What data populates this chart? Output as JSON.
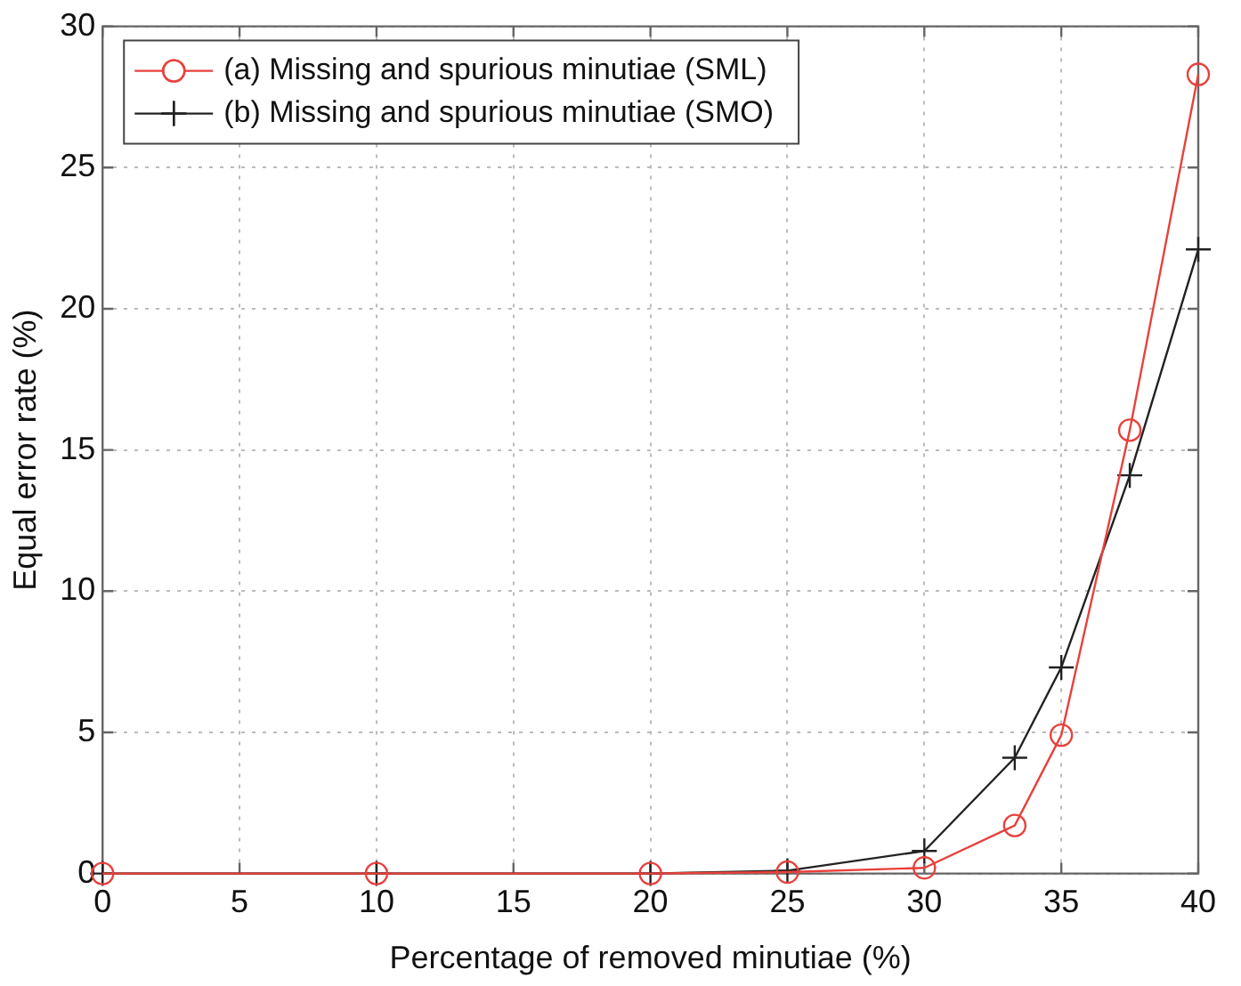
{
  "chart_data": {
    "type": "line",
    "xlabel": "Percentage of removed minutiae (%)",
    "ylabel": "Equal error rate (%)",
    "x": [
      0,
      10,
      20,
      25,
      30,
      33.3,
      35,
      37.5,
      40
    ],
    "series": [
      {
        "name": "(a) Missing and spurious minutiae (SML)",
        "color": "#e8413c",
        "marker": "circle",
        "values": [
          0,
          0,
          0,
          0.05,
          0.2,
          1.7,
          4.9,
          15.7,
          28.3
        ]
      },
      {
        "name": "(b) Missing and spurious minutiae (SMO)",
        "color": "#222222",
        "marker": "cross",
        "values": [
          0,
          0,
          0,
          0.1,
          0.8,
          4.1,
          7.3,
          14.1,
          22.1
        ]
      }
    ],
    "xlim": [
      0,
      40
    ],
    "xticks": [
      0,
      5,
      10,
      15,
      20,
      25,
      30,
      35,
      40
    ],
    "ylim": [
      0,
      30
    ],
    "yticks": [
      0,
      5,
      10,
      15,
      20,
      25,
      30
    ],
    "grid": true,
    "legend": "top left",
    "line_style": "solid"
  }
}
